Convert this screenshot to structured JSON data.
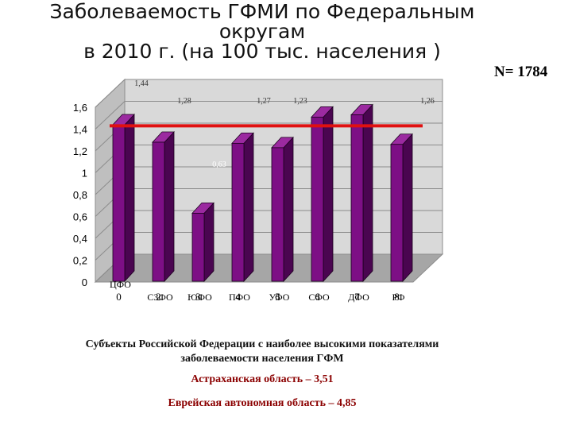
{
  "header": {
    "title_line1": "Заболеваемость ГФМИ по Федеральным",
    "title_line2": "округам",
    "title_line3": "в 2010 г.   (на 100 тыс. населения )",
    "n_label": "N= 1784"
  },
  "notes": {
    "caption_line1": "Субъекты Российской Федерации с наиболее высокими показателями",
    "caption_line2": "заболеваемости населения ГФМ",
    "item1": "Астраханская область – 3,51",
    "item2": "Еврейская автономная область – 4,85"
  },
  "chart_data": {
    "type": "bar",
    "categories": [
      "ЦФО",
      "СЗФО",
      "ЮФО",
      "ПФО",
      "УФО",
      "СФО",
      "ДФО",
      "РФ"
    ],
    "category_indices": [
      "0",
      "2",
      "3",
      "4",
      "5",
      "6",
      "7",
      "8"
    ],
    "values": [
      1.44,
      1.28,
      0.63,
      1.27,
      1.23,
      1.51,
      1.53,
      1.26
    ],
    "data_labels": [
      "1,44",
      "1,28",
      "0,63",
      "1,27",
      "1,23",
      "",
      "",
      "1,26"
    ],
    "ylim": [
      0,
      1.6
    ],
    "yticks": [
      "0",
      "0,2",
      "0,4",
      "0,6",
      "0,8",
      "1",
      "1,2",
      "1,4",
      "1,6"
    ],
    "reference_line": 1.43,
    "colors": {
      "bar_front": "#7d0f85",
      "bar_side": "#4a0550",
      "bar_top": "#9b2aa0",
      "reference": "#e01010",
      "wall": "#d9d9d9",
      "floor": "#a6a6a6"
    }
  }
}
